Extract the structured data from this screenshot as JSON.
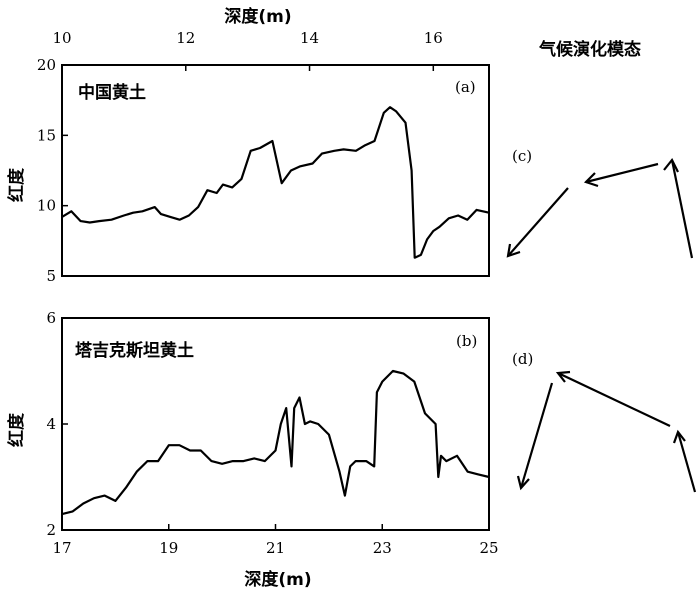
{
  "chart_data": [
    {
      "type": "line",
      "panel_label": "(a)",
      "annotation": "中国黄土",
      "xlabel": "深度(m)",
      "ylabel": "红度",
      "xlim": [
        10,
        16.9
      ],
      "ylim": [
        5,
        20
      ],
      "xticks": [
        10,
        12,
        14,
        16
      ],
      "yticks": [
        5,
        10,
        15,
        20
      ],
      "x": [
        10.0,
        10.15,
        10.3,
        10.45,
        10.6,
        10.8,
        11.0,
        11.15,
        11.3,
        11.5,
        11.6,
        11.75,
        11.9,
        12.05,
        12.2,
        12.35,
        12.5,
        12.6,
        12.75,
        12.9,
        13.05,
        13.2,
        13.4,
        13.55,
        13.7,
        13.85,
        14.05,
        14.2,
        14.4,
        14.55,
        14.75,
        14.9,
        15.05,
        15.2,
        15.3,
        15.4,
        15.55,
        15.65,
        15.7,
        15.8,
        15.9,
        16.0,
        16.1,
        16.25,
        16.4,
        16.55,
        16.7,
        16.9
      ],
      "y": [
        9.2,
        9.6,
        8.9,
        8.8,
        8.9,
        9.0,
        9.3,
        9.5,
        9.6,
        9.9,
        9.4,
        9.2,
        9.0,
        9.3,
        9.9,
        11.1,
        10.9,
        11.5,
        11.3,
        11.9,
        13.9,
        14.1,
        14.6,
        11.6,
        12.5,
        12.8,
        13.0,
        13.7,
        13.9,
        14.0,
        13.9,
        14.3,
        14.6,
        16.6,
        17.0,
        16.7,
        15.9,
        12.5,
        6.3,
        6.5,
        7.6,
        8.2,
        8.5,
        9.1,
        9.3,
        9.0,
        9.7,
        9.5
      ]
    },
    {
      "type": "line",
      "panel_label": "(b)",
      "annotation": "塔吉克斯坦黄土",
      "xlabel": "深度(m)",
      "ylabel": "红度",
      "xlim": [
        17,
        25
      ],
      "ylim": [
        2,
        6
      ],
      "xticks": [
        17,
        19,
        21,
        23,
        25
      ],
      "yticks": [
        2,
        4,
        6
      ],
      "x": [
        17.0,
        17.2,
        17.4,
        17.6,
        17.8,
        18.0,
        18.2,
        18.4,
        18.6,
        18.8,
        19.0,
        19.2,
        19.4,
        19.6,
        19.8,
        20.0,
        20.2,
        20.4,
        20.6,
        20.8,
        21.0,
        21.1,
        21.2,
        21.3,
        21.35,
        21.45,
        21.55,
        21.65,
        21.8,
        22.0,
        22.2,
        22.3,
        22.4,
        22.5,
        22.7,
        22.85,
        22.9,
        23.0,
        23.2,
        23.4,
        23.6,
        23.8,
        24.0,
        24.05,
        24.1,
        24.2,
        24.4,
        24.6,
        24.8,
        25.0
      ],
      "y": [
        2.3,
        2.35,
        2.5,
        2.6,
        2.65,
        2.55,
        2.8,
        3.1,
        3.3,
        3.3,
        3.6,
        3.6,
        3.5,
        3.5,
        3.3,
        3.25,
        3.3,
        3.3,
        3.35,
        3.3,
        3.5,
        4.0,
        4.3,
        3.2,
        4.3,
        4.5,
        4.0,
        4.05,
        4.0,
        3.8,
        3.1,
        2.65,
        3.2,
        3.3,
        3.3,
        3.2,
        4.6,
        4.8,
        5.0,
        4.95,
        4.8,
        4.2,
        4.0,
        3.0,
        3.4,
        3.3,
        3.4,
        3.1,
        3.05,
        3.0
      ]
    }
  ],
  "side_panel": {
    "title": "气候演化模态",
    "labels": [
      "(c)",
      "(d)"
    ]
  }
}
